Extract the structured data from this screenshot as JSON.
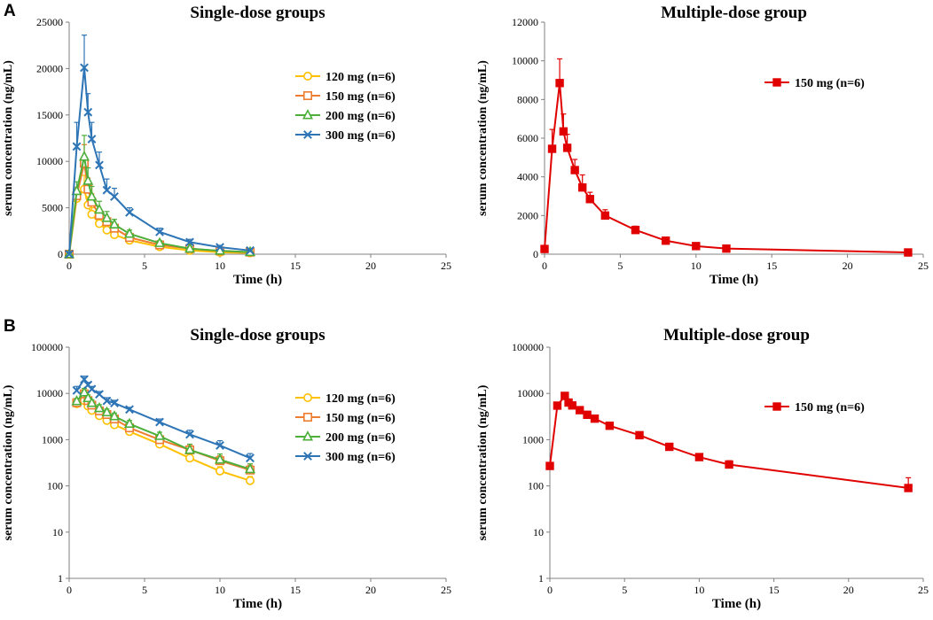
{
  "panels": [
    {
      "letter": "A"
    },
    {
      "letter": "B"
    }
  ],
  "colors": {
    "120": "#FFC000",
    "150": "#ED7D31",
    "200": "#4CAF3A",
    "300": "#2E75B6",
    "multi": "#E00000"
  },
  "chart_data": [
    {
      "id": "A-single",
      "type": "line",
      "scale": "linear",
      "title": "Single-dose groups",
      "xlabel": "Time (h)",
      "ylabel": "serum concentration (ng/mL)",
      "xlim": [
        0,
        25
      ],
      "xticks": [
        0,
        5,
        10,
        15,
        20,
        25
      ],
      "ylim": [
        0,
        25000
      ],
      "yticks": [
        0,
        5000,
        10000,
        15000,
        20000,
        25000
      ],
      "legend_position": "right",
      "x": [
        0,
        0.5,
        1,
        1.25,
        1.5,
        2,
        2.5,
        3,
        4,
        6,
        8,
        10,
        12
      ],
      "series": [
        {
          "name": "120 mg (n=6)",
          "color_key": "120",
          "marker": "circle",
          "values": [
            0,
            6000,
            7000,
            5300,
            4300,
            3300,
            2600,
            2100,
            1500,
            800,
            400,
            210,
            130
          ],
          "errors": [
            0,
            800,
            1500,
            900,
            700,
            500,
            400,
            300,
            250,
            150,
            100,
            50,
            30
          ]
        },
        {
          "name": "150 mg (n=6)",
          "color_key": "150",
          "marker": "square",
          "values": [
            0,
            6300,
            9800,
            7000,
            5600,
            4200,
            3500,
            2800,
            1800,
            1000,
            600,
            350,
            220
          ],
          "errors": [
            0,
            900,
            2000,
            1200,
            900,
            700,
            500,
            400,
            300,
            200,
            150,
            100,
            60
          ]
        },
        {
          "name": "200 mg (n=6)",
          "color_key": "200",
          "marker": "triangle",
          "values": [
            0,
            6800,
            10500,
            7900,
            6200,
            4800,
            3900,
            3200,
            2200,
            1200,
            600,
            370,
            230
          ],
          "errors": [
            0,
            1000,
            2300,
            1400,
            1100,
            900,
            700,
            550,
            400,
            250,
            200,
            120,
            70
          ]
        },
        {
          "name": "300 mg (n=6)",
          "color_key": "300",
          "marker": "x",
          "values": [
            0,
            11600,
            20100,
            15300,
            12400,
            9600,
            6900,
            6200,
            4500,
            2400,
            1300,
            750,
            400
          ],
          "errors": [
            0,
            2600,
            3500,
            2000,
            1800,
            1400,
            1200,
            900,
            500,
            400,
            300,
            200,
            100
          ]
        }
      ]
    },
    {
      "id": "A-multi",
      "type": "line",
      "scale": "linear",
      "title": "Multiple-dose group",
      "xlabel": "Time (h)",
      "ylabel": "serum concentration (ng/mL)",
      "xlim": [
        0,
        25
      ],
      "xticks": [
        0,
        5,
        10,
        15,
        20,
        25
      ],
      "ylim": [
        0,
        12000
      ],
      "yticks": [
        0,
        2000,
        4000,
        6000,
        8000,
        10000,
        12000
      ],
      "legend_position": "top-right",
      "x": [
        0,
        0.5,
        1,
        1.25,
        1.5,
        2,
        2.5,
        3,
        4,
        6,
        8,
        10,
        12,
        24
      ],
      "series": [
        {
          "name": "150 mg (n=6)",
          "color_key": "multi",
          "marker": "square",
          "values": [
            270,
            5450,
            8850,
            6350,
            5500,
            4350,
            3450,
            2850,
            2000,
            1250,
            700,
            420,
            290,
            90
          ],
          "errors": [
            0,
            1000,
            1250,
            900,
            700,
            550,
            650,
            350,
            300,
            200,
            120,
            80,
            60,
            60
          ]
        }
      ]
    },
    {
      "id": "B-single",
      "type": "line",
      "scale": "log",
      "title": "Single-dose groups",
      "xlabel": "Time (h)",
      "ylabel": "serum concentration (ng/mL)",
      "xlim": [
        0,
        25
      ],
      "xticks": [
        0,
        5,
        10,
        15,
        20,
        25
      ],
      "ylim": [
        1,
        100000
      ],
      "yticks": [
        1,
        10,
        100,
        1000,
        10000,
        100000
      ],
      "legend_position": "right",
      "x": [
        0.5,
        1,
        1.25,
        1.5,
        2,
        2.5,
        3,
        4,
        6,
        8,
        10,
        12
      ],
      "series": [
        {
          "name": "120 mg (n=6)",
          "color_key": "120",
          "marker": "circle",
          "values": [
            6000,
            7000,
            5300,
            4300,
            3300,
            2600,
            2100,
            1500,
            800,
            400,
            210,
            130
          ],
          "errors": [
            800,
            1500,
            900,
            700,
            500,
            400,
            300,
            250,
            150,
            100,
            50,
            30
          ]
        },
        {
          "name": "150 mg (n=6)",
          "color_key": "150",
          "marker": "square",
          "values": [
            6300,
            9800,
            7000,
            5600,
            4200,
            3500,
            2800,
            1800,
            1000,
            600,
            350,
            220
          ],
          "errors": [
            900,
            2000,
            1200,
            900,
            700,
            500,
            400,
            300,
            200,
            150,
            100,
            60
          ]
        },
        {
          "name": "200 mg (n=6)",
          "color_key": "200",
          "marker": "triangle",
          "values": [
            6800,
            10500,
            7900,
            6200,
            4800,
            3900,
            3200,
            2200,
            1200,
            600,
            370,
            230
          ],
          "errors": [
            1000,
            2300,
            1400,
            1100,
            900,
            700,
            550,
            400,
            250,
            200,
            120,
            70
          ]
        },
        {
          "name": "300 mg (n=6)",
          "color_key": "300",
          "marker": "x",
          "values": [
            11600,
            20100,
            15300,
            12400,
            9600,
            6900,
            6200,
            4500,
            2400,
            1300,
            750,
            400
          ],
          "errors": [
            2600,
            3500,
            2000,
            1800,
            1400,
            1200,
            900,
            500,
            400,
            300,
            200,
            100
          ]
        }
      ]
    },
    {
      "id": "B-multi",
      "type": "line",
      "scale": "log",
      "title": "Multiple-dose group",
      "xlabel": "Time (h)",
      "ylabel": "serum concentration (ng/mL)",
      "xlim": [
        0,
        25
      ],
      "xticks": [
        0,
        5,
        10,
        15,
        20,
        25
      ],
      "ylim": [
        1,
        100000
      ],
      "yticks": [
        1,
        10,
        100,
        1000,
        10000,
        100000
      ],
      "legend_position": "top-right",
      "x": [
        0,
        0.5,
        1,
        1.25,
        1.5,
        2,
        2.5,
        3,
        4,
        6,
        8,
        10,
        12,
        24
      ],
      "series": [
        {
          "name": "150 mg (n=6)",
          "color_key": "multi",
          "marker": "square",
          "values": [
            270,
            5450,
            8850,
            6350,
            5500,
            4350,
            3450,
            2850,
            2000,
            1250,
            700,
            420,
            290,
            90
          ],
          "errors": [
            0,
            1000,
            1250,
            900,
            700,
            550,
            650,
            350,
            300,
            200,
            120,
            80,
            60,
            60
          ]
        }
      ]
    }
  ]
}
